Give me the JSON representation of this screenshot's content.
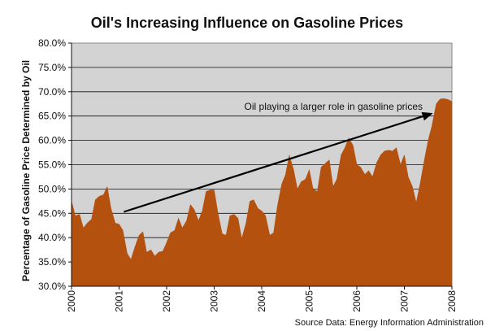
{
  "chart_data": {
    "type": "area",
    "title": "Oil's Increasing Influence on Gasoline Prices",
    "xlabel": "",
    "ylabel": "Percentage of Gasoline Price Determined by Oil",
    "x_range": [
      2000,
      2008
    ],
    "ylim": [
      30,
      80
    ],
    "y_ticks": [
      "30.0%",
      "35.0%",
      "40.0%",
      "45.0%",
      "50.0%",
      "55.0%",
      "60.0%",
      "65.0%",
      "70.0%",
      "75.0%",
      "80.0%"
    ],
    "x_ticks": [
      "2000",
      "2001",
      "2002",
      "2003",
      "2004",
      "2005",
      "2006",
      "2007",
      "2008"
    ],
    "grid": true,
    "fill_color": "#b5510f",
    "plot_background": "#d3d3d3",
    "annotation": {
      "text": "Oil playing a larger role in gasoline prices",
      "arrow_from": [
        2001.1,
        45.3
      ],
      "arrow_to": [
        2007.6,
        65.6
      ]
    },
    "source": "Source Data: Energy Information Administration",
    "x": [
      2000.0,
      2000.08,
      2000.17,
      2000.25,
      2000.33,
      2000.42,
      2000.5,
      2000.58,
      2000.67,
      2000.75,
      2000.83,
      2000.92,
      2001.0,
      2001.08,
      2001.17,
      2001.25,
      2001.33,
      2001.42,
      2001.5,
      2001.58,
      2001.67,
      2001.75,
      2001.83,
      2001.92,
      2002.0,
      2002.08,
      2002.17,
      2002.25,
      2002.33,
      2002.42,
      2002.5,
      2002.58,
      2002.67,
      2002.75,
      2002.83,
      2002.92,
      2003.0,
      2003.08,
      2003.17,
      2003.25,
      2003.33,
      2003.42,
      2003.5,
      2003.58,
      2003.67,
      2003.75,
      2003.83,
      2003.92,
      2004.0,
      2004.08,
      2004.17,
      2004.25,
      2004.33,
      2004.42,
      2004.5,
      2004.58,
      2004.67,
      2004.75,
      2004.83,
      2004.92,
      2005.0,
      2005.08,
      2005.17,
      2005.25,
      2005.33,
      2005.42,
      2005.5,
      2005.58,
      2005.67,
      2005.75,
      2005.83,
      2005.92,
      2006.0,
      2006.08,
      2006.17,
      2006.25,
      2006.33,
      2006.42,
      2006.5,
      2006.58,
      2006.67,
      2006.75,
      2006.83,
      2006.92,
      2007.0,
      2007.08,
      2007.17,
      2007.25,
      2007.33,
      2007.42,
      2007.5,
      2007.58,
      2007.67,
      2007.75,
      2007.83,
      2007.92,
      2008.0
    ],
    "values": [
      47.5,
      44.5,
      44.8,
      42.0,
      43.0,
      43.8,
      47.8,
      48.5,
      48.8,
      50.5,
      46.0,
      43.0,
      42.8,
      41.5,
      36.8,
      35.5,
      38.0,
      40.5,
      41.2,
      37.0,
      37.5,
      36.2,
      37.0,
      37.2,
      39.0,
      41.0,
      41.5,
      44.0,
      42.0,
      43.5,
      46.8,
      45.8,
      43.5,
      45.5,
      49.5,
      49.8,
      49.8,
      45.0,
      40.8,
      40.5,
      44.5,
      44.8,
      44.0,
      39.8,
      43.0,
      47.5,
      47.8,
      46.0,
      45.5,
      44.5,
      40.5,
      41.0,
      46.5,
      51.0,
      53.0,
      57.0,
      54.0,
      50.0,
      51.5,
      52.0,
      54.0,
      50.0,
      49.5,
      54.5,
      55.2,
      56.0,
      50.5,
      52.0,
      57.0,
      58.5,
      60.5,
      59.0,
      55.0,
      54.5,
      53.0,
      53.8,
      52.5,
      55.5,
      57.0,
      57.8,
      58.0,
      57.8,
      58.5,
      55.0,
      57.0,
      52.5,
      50.5,
      47.2,
      51.0,
      56.0,
      60.0,
      63.0,
      67.5,
      68.5,
      68.6,
      68.4,
      68.0
    ]
  }
}
